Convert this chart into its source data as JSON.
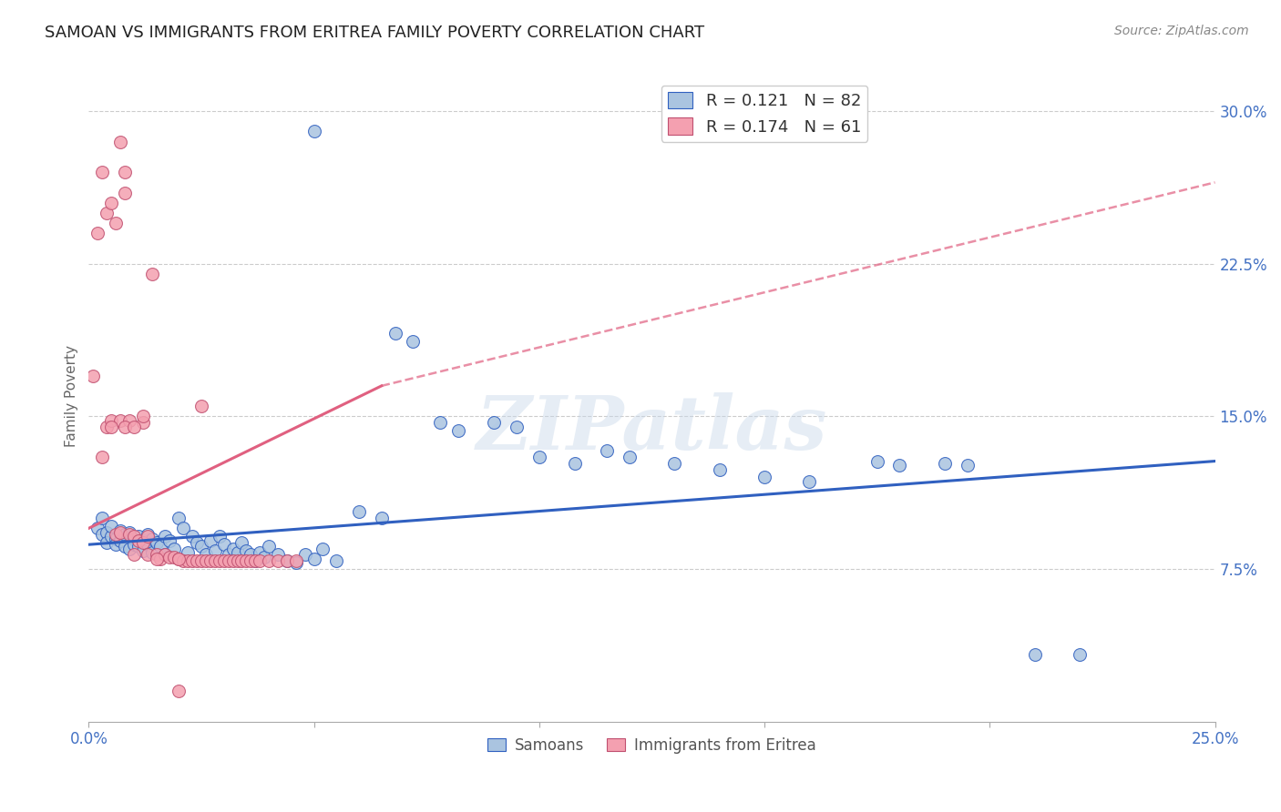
{
  "title": "SAMOAN VS IMMIGRANTS FROM ERITREA FAMILY POVERTY CORRELATION CHART",
  "source": "Source: ZipAtlas.com",
  "ylabel": "Family Poverty",
  "yticks": [
    "7.5%",
    "15.0%",
    "22.5%",
    "30.0%"
  ],
  "ytick_vals": [
    0.075,
    0.15,
    0.225,
    0.3
  ],
  "xlim": [
    0.0,
    0.25
  ],
  "ylim": [
    0.0,
    0.32
  ],
  "samoan_color": "#aac4e0",
  "eritrea_color": "#f4a0b0",
  "samoan_line_color": "#3060c0",
  "eritrea_line_color": "#e06080",
  "watermark": "ZIPatlas",
  "samoan_R": 0.121,
  "samoan_N": 82,
  "eritrea_R": 0.174,
  "eritrea_N": 61,
  "title_fontsize": 13,
  "axis_label_color": "#4472c4",
  "samoan_scatter": [
    [
      0.002,
      0.095
    ],
    [
      0.003,
      0.092
    ],
    [
      0.003,
      0.1
    ],
    [
      0.004,
      0.093
    ],
    [
      0.004,
      0.088
    ],
    [
      0.005,
      0.091
    ],
    [
      0.005,
      0.096
    ],
    [
      0.006,
      0.09
    ],
    [
      0.006,
      0.087
    ],
    [
      0.007,
      0.094
    ],
    [
      0.007,
      0.089
    ],
    [
      0.008,
      0.092
    ],
    [
      0.008,
      0.086
    ],
    [
      0.009,
      0.085
    ],
    [
      0.009,
      0.093
    ],
    [
      0.01,
      0.09
    ],
    [
      0.01,
      0.087
    ],
    [
      0.011,
      0.091
    ],
    [
      0.011,
      0.086
    ],
    [
      0.012,
      0.089
    ],
    [
      0.012,
      0.084
    ],
    [
      0.013,
      0.092
    ],
    [
      0.013,
      0.087
    ],
    [
      0.014,
      0.09
    ],
    [
      0.014,
      0.083
    ],
    [
      0.015,
      0.088
    ],
    [
      0.016,
      0.086
    ],
    [
      0.017,
      0.091
    ],
    [
      0.017,
      0.082
    ],
    [
      0.018,
      0.089
    ],
    [
      0.019,
      0.085
    ],
    [
      0.02,
      0.1
    ],
    [
      0.021,
      0.095
    ],
    [
      0.022,
      0.083
    ],
    [
      0.023,
      0.091
    ],
    [
      0.024,
      0.088
    ],
    [
      0.025,
      0.086
    ],
    [
      0.026,
      0.082
    ],
    [
      0.027,
      0.089
    ],
    [
      0.028,
      0.084
    ],
    [
      0.029,
      0.091
    ],
    [
      0.03,
      0.087
    ],
    [
      0.031,
      0.082
    ],
    [
      0.032,
      0.085
    ],
    [
      0.033,
      0.083
    ],
    [
      0.034,
      0.088
    ],
    [
      0.035,
      0.084
    ],
    [
      0.036,
      0.082
    ],
    [
      0.037,
      0.079
    ],
    [
      0.038,
      0.083
    ],
    [
      0.039,
      0.081
    ],
    [
      0.04,
      0.086
    ],
    [
      0.042,
      0.082
    ],
    [
      0.044,
      0.079
    ],
    [
      0.046,
      0.078
    ],
    [
      0.048,
      0.082
    ],
    [
      0.05,
      0.08
    ],
    [
      0.052,
      0.085
    ],
    [
      0.055,
      0.079
    ],
    [
      0.06,
      0.103
    ],
    [
      0.065,
      0.1
    ],
    [
      0.068,
      0.191
    ],
    [
      0.072,
      0.187
    ],
    [
      0.078,
      0.147
    ],
    [
      0.082,
      0.143
    ],
    [
      0.09,
      0.147
    ],
    [
      0.095,
      0.145
    ],
    [
      0.1,
      0.13
    ],
    [
      0.108,
      0.127
    ],
    [
      0.115,
      0.133
    ],
    [
      0.12,
      0.13
    ],
    [
      0.13,
      0.127
    ],
    [
      0.14,
      0.124
    ],
    [
      0.15,
      0.12
    ],
    [
      0.16,
      0.118
    ],
    [
      0.175,
      0.128
    ],
    [
      0.18,
      0.126
    ],
    [
      0.19,
      0.127
    ],
    [
      0.195,
      0.126
    ],
    [
      0.21,
      0.033
    ],
    [
      0.22,
      0.033
    ],
    [
      0.05,
      0.29
    ]
  ],
  "eritrea_scatter": [
    [
      0.001,
      0.17
    ],
    [
      0.002,
      0.24
    ],
    [
      0.003,
      0.27
    ],
    [
      0.003,
      0.13
    ],
    [
      0.004,
      0.25
    ],
    [
      0.004,
      0.145
    ],
    [
      0.005,
      0.255
    ],
    [
      0.005,
      0.148
    ],
    [
      0.006,
      0.245
    ],
    [
      0.006,
      0.092
    ],
    [
      0.007,
      0.285
    ],
    [
      0.007,
      0.093
    ],
    [
      0.007,
      0.148
    ],
    [
      0.008,
      0.27
    ],
    [
      0.008,
      0.26
    ],
    [
      0.009,
      0.148
    ],
    [
      0.009,
      0.092
    ],
    [
      0.01,
      0.082
    ],
    [
      0.01,
      0.091
    ],
    [
      0.011,
      0.089
    ],
    [
      0.012,
      0.088
    ],
    [
      0.012,
      0.147
    ],
    [
      0.013,
      0.091
    ],
    [
      0.013,
      0.082
    ],
    [
      0.014,
      0.22
    ],
    [
      0.015,
      0.082
    ],
    [
      0.016,
      0.08
    ],
    [
      0.017,
      0.082
    ],
    [
      0.018,
      0.081
    ],
    [
      0.019,
      0.081
    ],
    [
      0.02,
      0.08
    ],
    [
      0.021,
      0.079
    ],
    [
      0.022,
      0.079
    ],
    [
      0.023,
      0.079
    ],
    [
      0.024,
      0.079
    ],
    [
      0.025,
      0.079
    ],
    [
      0.026,
      0.079
    ],
    [
      0.027,
      0.079
    ],
    [
      0.028,
      0.079
    ],
    [
      0.029,
      0.079
    ],
    [
      0.03,
      0.079
    ],
    [
      0.031,
      0.079
    ],
    [
      0.032,
      0.079
    ],
    [
      0.033,
      0.079
    ],
    [
      0.034,
      0.079
    ],
    [
      0.035,
      0.079
    ],
    [
      0.036,
      0.079
    ],
    [
      0.037,
      0.079
    ],
    [
      0.038,
      0.079
    ],
    [
      0.04,
      0.079
    ],
    [
      0.042,
      0.079
    ],
    [
      0.044,
      0.079
    ],
    [
      0.046,
      0.079
    ],
    [
      0.02,
      0.015
    ],
    [
      0.025,
      0.155
    ],
    [
      0.005,
      0.145
    ],
    [
      0.008,
      0.145
    ],
    [
      0.01,
      0.145
    ],
    [
      0.012,
      0.15
    ],
    [
      0.015,
      0.08
    ],
    [
      0.02,
      0.08
    ]
  ],
  "samoan_trend": [
    0.0,
    0.25,
    0.087,
    0.128
  ],
  "eritrea_trend": [
    0.0,
    0.065,
    0.095,
    0.165
  ],
  "eritrea_dashed": [
    0.065,
    0.25,
    0.165,
    0.265
  ]
}
